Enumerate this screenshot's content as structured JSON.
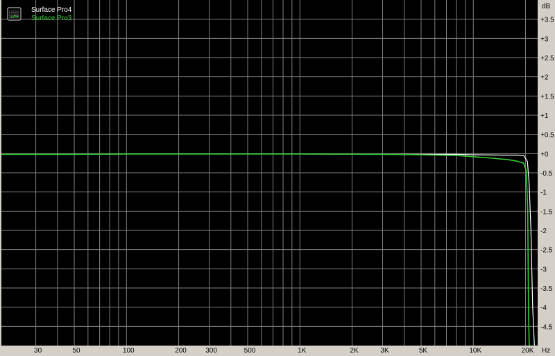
{
  "chart_data": {
    "type": "line",
    "title": "",
    "xlabel": "",
    "x_unit": "Hz",
    "ylabel": "",
    "y_unit": "dB",
    "x_scale": "log",
    "xlim": [
      19,
      23500
    ],
    "ylim": [
      -5,
      4
    ],
    "grid": true,
    "legend_position": "top-left",
    "background": "#000000",
    "x_ticks": [
      30,
      40,
      50,
      60,
      70,
      80,
      90,
      100,
      200,
      300,
      400,
      500,
      600,
      700,
      800,
      900,
      1000,
      2000,
      3000,
      4000,
      5000,
      6000,
      7000,
      8000,
      9000,
      10000,
      20000
    ],
    "x_tick_labels": [
      {
        "value": 30,
        "label": "30"
      },
      {
        "value": 50,
        "label": "50"
      },
      {
        "value": 100,
        "label": "100"
      },
      {
        "value": 200,
        "label": "200"
      },
      {
        "value": 300,
        "label": "300"
      },
      {
        "value": 500,
        "label": "500"
      },
      {
        "value": 1000,
        "label": "1K"
      },
      {
        "value": 2000,
        "label": "2K"
      },
      {
        "value": 3000,
        "label": "3K"
      },
      {
        "value": 5000,
        "label": "5K"
      },
      {
        "value": 10000,
        "label": "10K"
      },
      {
        "value": 20000,
        "label": "20K"
      }
    ],
    "y_ticks": [
      3.5,
      3,
      2.5,
      2,
      1.5,
      1,
      0.5,
      0,
      -0.5,
      -1,
      -1.5,
      -2,
      -2.5,
      -3,
      -3.5,
      -4,
      -4.5
    ],
    "y_tick_labels": [
      "+3.5",
      "+3",
      "+2.5",
      "+2",
      "+1.5",
      "+1",
      "+0.5",
      "+0",
      "-0.5",
      "-1",
      "-1.5",
      "-2",
      "-2.5",
      "-3",
      "-3.5",
      "-4",
      "-4.5"
    ],
    "series": [
      {
        "name": "Surface Pro4",
        "color": "#ffffff",
        "x": [
          19,
          50,
          100,
          300,
          1000,
          3000,
          5000,
          8000,
          10000,
          15000,
          18000,
          19500,
          20500,
          21000,
          21500,
          22000,
          22500
        ],
        "y": [
          -0.02,
          -0.02,
          -0.01,
          -0.01,
          -0.01,
          -0.02,
          -0.02,
          -0.02,
          -0.03,
          -0.04,
          -0.04,
          -0.05,
          -0.2,
          -0.8,
          -2.0,
          -4.0,
          -6.0
        ]
      },
      {
        "name": "Surface Pro3",
        "color": "#33cc33",
        "x": [
          19,
          50,
          100,
          300,
          1000,
          3000,
          5000,
          8000,
          10000,
          13000,
          16000,
          18000,
          19500,
          20200,
          20600,
          20800,
          21000
        ],
        "y": [
          -0.02,
          -0.02,
          -0.01,
          -0.01,
          -0.01,
          -0.02,
          -0.03,
          -0.05,
          -0.08,
          -0.12,
          -0.16,
          -0.2,
          -0.25,
          -0.45,
          -1.5,
          -4.0,
          -6.0
        ]
      }
    ]
  }
}
